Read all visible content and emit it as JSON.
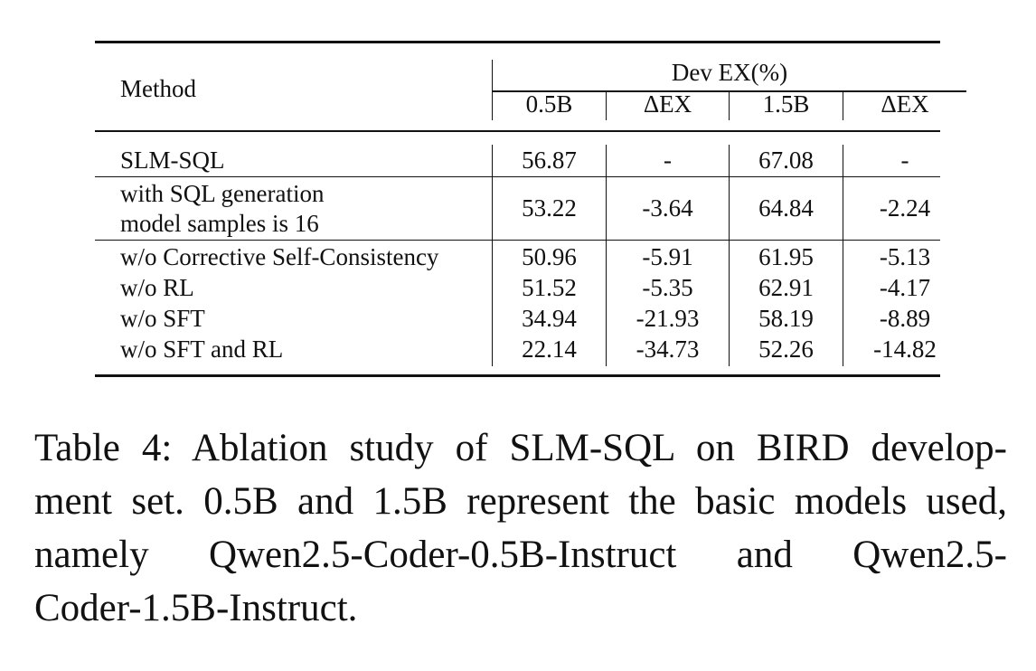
{
  "table": {
    "header": {
      "method": "Method",
      "group": "Dev EX(%)",
      "columns": [
        "0.5B",
        "ΔEX",
        "1.5B",
        "ΔEX"
      ]
    },
    "rows": [
      {
        "method": [
          "SLM-SQL"
        ],
        "values": [
          "56.87",
          "-",
          "67.08",
          "-"
        ]
      },
      {
        "method": [
          "with SQL generation",
          "model samples is 16"
        ],
        "values": [
          "53.22",
          "-3.64",
          "64.84",
          "-2.24"
        ]
      },
      {
        "method": [
          "w/o Corrective Self-Consistency"
        ],
        "values": [
          "50.96",
          "-5.91",
          "61.95",
          "-5.13"
        ]
      },
      {
        "method": [
          "w/o RL"
        ],
        "values": [
          "51.52",
          "-5.35",
          "62.91",
          "-4.17"
        ]
      },
      {
        "method": [
          "w/o SFT"
        ],
        "values": [
          "34.94",
          "-21.93",
          "58.19",
          "-8.89"
        ]
      },
      {
        "method": [
          "w/o SFT and RL"
        ],
        "values": [
          "22.14",
          "-34.73",
          "52.26",
          "-14.82"
        ]
      }
    ]
  },
  "caption": {
    "lines": [
      "Table 4: Ablation study of SLM-SQL on BIRD develop-",
      "ment set. 0.5B and 1.5B represent the basic models used,",
      "namely Qwen2.5-Coder-0.5B-Instruct and Qwen2.5-",
      "Coder-1.5B-Instruct."
    ]
  }
}
